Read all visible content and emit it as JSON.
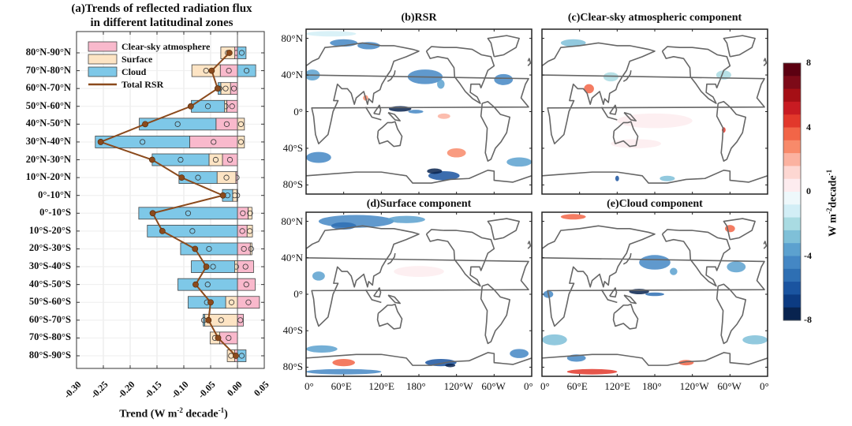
{
  "chart_data": [
    {
      "type": "bar",
      "orientation": "horizontal-stacked",
      "title_line1": "(a)Trends of reflected radiation flux",
      "title_line2": "in different latitudinal zones",
      "xlabel_main": "Trend (W m",
      "xlabel_sup1": "-2",
      "xlabel_mid": " decade",
      "xlabel_sup2": "-1",
      "xlabel_end": ")",
      "xlim": [
        -0.3,
        0.05
      ],
      "xticks": [
        "-0.30",
        "-0.25",
        "-0.20",
        "-0.15",
        "-0.10",
        "-0.05",
        "0.00",
        "0.05"
      ],
      "xtick_values": [
        -0.3,
        -0.25,
        -0.2,
        -0.15,
        -0.1,
        -0.05,
        0.0,
        0.05
      ],
      "grid": true,
      "legend_position": "top-left",
      "categories": [
        "80°N-90°N",
        "70°N-80°N",
        "60°N-70°N",
        "50°N-60°N",
        "40°N-50°N",
        "30°N-40°N",
        "20°N-30°N",
        "10°N-20°N",
        "0°-10°N",
        "0°-10°S",
        "10°S-20°S",
        "20°S-30°S",
        "30°S-40°S",
        "40°S-50°S",
        "50°S-60°S",
        "60°S-70°S",
        "70°S-80°S",
        "80°S-90°S"
      ],
      "series": [
        {
          "name": "Clear-sky atmosphere",
          "color": "#f9b9cc",
          "values": [
            -0.005,
            -0.032,
            -0.013,
            -0.02,
            -0.04,
            -0.089,
            -0.028,
            -0.003,
            -0.001,
            0.02,
            0.018,
            0.024,
            0.03,
            0.033,
            0.041,
            0.011,
            -0.033,
            -0.005
          ]
        },
        {
          "name": "Surface",
          "color": "#fde4c4",
          "values": [
            -0.026,
            -0.053,
            -0.018,
            -0.004,
            0.013,
            0.013,
            -0.025,
            -0.035,
            -0.008,
            0.007,
            0.01,
            0.003,
            -0.005,
            0.0,
            -0.022,
            -0.061,
            -0.018,
            -0.014
          ]
        },
        {
          "name": "Cloud",
          "color": "#7ec8e8",
          "values": [
            0.016,
            0.034,
            -0.005,
            -0.062,
            -0.143,
            -0.176,
            -0.106,
            -0.071,
            -0.019,
            -0.184,
            -0.168,
            -0.106,
            -0.081,
            -0.111,
            -0.07,
            -0.003,
            0.0,
            0.016
          ]
        },
        {
          "name": "Total RSR",
          "color": "#8b4a1c",
          "kind": "line",
          "values": [
            -0.015,
            -0.048,
            -0.037,
            -0.087,
            -0.172,
            -0.255,
            -0.159,
            -0.104,
            -0.027,
            -0.158,
            -0.14,
            -0.079,
            -0.058,
            -0.078,
            -0.05,
            -0.054,
            -0.036,
            -0.003
          ]
        }
      ]
    },
    {
      "type": "heatmap",
      "panels": [
        {
          "title": "(b)RSR"
        },
        {
          "title": "(c)Clear-sky atmospheric component"
        },
        {
          "title": "(d)Surface component"
        },
        {
          "title": "(e)Cloud component"
        }
      ],
      "lat_ticks": [
        "80°N",
        "40°N",
        "0°",
        "40°S",
        "80°S"
      ],
      "lon_ticks": [
        "0°",
        "60°E",
        "120°E",
        "180°",
        "120°W",
        "60°W",
        "0°"
      ],
      "colorbar": {
        "range": [
          -8,
          8
        ],
        "ticks": [
          "8",
          "4",
          "0",
          "-4",
          "-8"
        ],
        "label_main": "W m",
        "label_sup1": "-2",
        "label_mid": "decade",
        "label_sup2": "-1",
        "colors": [
          "#5c0011",
          "#7d0a18",
          "#a50f15",
          "#c81b22",
          "#e2382b",
          "#f26547",
          "#f88a6a",
          "#fbb2a0",
          "#fdd7d2",
          "#fdecef",
          "#eef8fb",
          "#d2eef6",
          "#a9dbe2",
          "#7fc0d8",
          "#5ca1cf",
          "#4487c4",
          "#2e6fb3",
          "#1a54a0",
          "#0c3b82",
          "#08234f"
        ]
      }
    }
  ]
}
